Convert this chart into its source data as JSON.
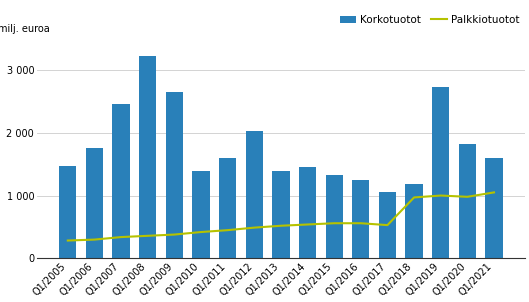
{
  "categories": [
    "Q1/2005",
    "Q1/2006",
    "Q1/2007",
    "Q1/2008",
    "Q1/2009",
    "Q1/2010",
    "Q1/2011",
    "Q1/2012",
    "Q1/2013",
    "Q1/2014",
    "Q1/2015",
    "Q1/2016",
    "Q1/2017",
    "Q1/2018",
    "Q1/2019",
    "Q1/2020",
    "Q1/2021"
  ],
  "korkotuotot": [
    1470,
    1750,
    2450,
    3220,
    2650,
    1390,
    1600,
    2030,
    1390,
    1450,
    1330,
    1250,
    1060,
    1180,
    2720,
    1820,
    1600
  ],
  "palkkiotuotot": [
    285,
    300,
    340,
    360,
    380,
    420,
    450,
    490,
    520,
    540,
    560,
    560,
    530,
    970,
    1000,
    980,
    1050
  ],
  "bar_color": "#2980b9",
  "line_color": "#b5c200",
  "ylabel": "milj. euroa",
  "ylim": [
    0,
    3500
  ],
  "yticks": [
    0,
    1000,
    2000,
    3000
  ],
  "legend_bar": "Korkotuotot",
  "legend_line": "Palkkiotuotot",
  "grid_color": "#cccccc",
  "axis_fontsize": 7,
  "legend_fontsize": 7.5
}
